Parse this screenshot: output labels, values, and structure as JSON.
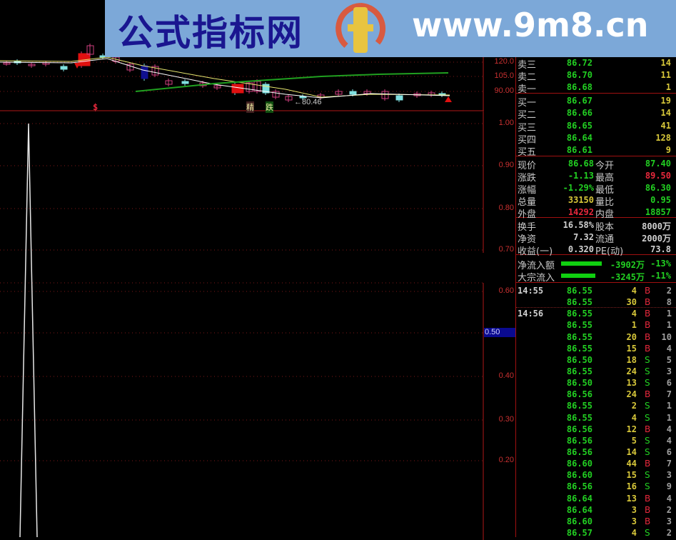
{
  "watermark": {
    "site_name": "公式指标网",
    "url": "www.9m8.cn"
  },
  "top_chart": {
    "y_axis_labels": [
      "120.0",
      "105.0",
      "90.00"
    ],
    "low_marker": "←80.46",
    "tags": [
      "精",
      "跌"
    ],
    "signal": "$"
  },
  "bottom_chart": {
    "y_axis_labels": [
      "1.00",
      "0.90",
      "0.80",
      "0.70",
      "0.60",
      "0.50",
      "0.40",
      "0.30",
      "0.20"
    ],
    "current_value": "0.50"
  },
  "order_book": {
    "asks": [
      {
        "label": "卖三",
        "price": "86.72",
        "vol": "14"
      },
      {
        "label": "卖二",
        "price": "86.70",
        "vol": "11"
      },
      {
        "label": "卖一",
        "price": "86.68",
        "vol": "1"
      }
    ],
    "bids": [
      {
        "label": "买一",
        "price": "86.67",
        "vol": "19"
      },
      {
        "label": "买二",
        "price": "86.66",
        "vol": "14"
      },
      {
        "label": "买三",
        "price": "86.65",
        "vol": "41"
      },
      {
        "label": "买四",
        "price": "86.64",
        "vol": "128"
      },
      {
        "label": "买五",
        "price": "86.61",
        "vol": "9"
      }
    ]
  },
  "quote": [
    {
      "l1": "现价",
      "v1": "86.68",
      "c1": "g",
      "l2": "今开",
      "v2": "87.40",
      "c2": "g"
    },
    {
      "l1": "涨跌",
      "v1": "-1.13",
      "c1": "g",
      "l2": "最高",
      "v2": "89.50",
      "c2": "r"
    },
    {
      "l1": "涨幅",
      "v1": "-1.29%",
      "c1": "g",
      "l2": "最低",
      "v2": "86.30",
      "c2": "g"
    },
    {
      "l1": "总量",
      "v1": "33150",
      "c1": "y",
      "l2": "量比",
      "v2": "0.95",
      "c2": "g"
    },
    {
      "l1": "外盘",
      "v1": "14292",
      "c1": "r",
      "l2": "内盘",
      "v2": "18857",
      "c2": "g"
    }
  ],
  "fundamentals": [
    {
      "l1": "换手",
      "v1": "16.58%",
      "l2": "股本",
      "v2": "8000万"
    },
    {
      "l1": "净资",
      "v1": "7.32",
      "l2": "流通",
      "v2": "2000万"
    },
    {
      "l1": "收益(一)",
      "v1": "0.320",
      "l2": "PE(动)",
      "v2": "73.8"
    }
  ],
  "flows": [
    {
      "label": "净流入额",
      "amount": "-3902万",
      "pct": "-13%",
      "bar_fraction": 0.13
    },
    {
      "label": "大宗流入",
      "amount": "-3245万",
      "pct": "-11%",
      "bar_fraction": 0.11
    }
  ],
  "ticks": [
    {
      "time": "14:55",
      "price": "86.55",
      "vol": "4",
      "side": "B",
      "count": "2"
    },
    {
      "time": "",
      "price": "86.55",
      "vol": "30",
      "side": "B",
      "count": "8"
    },
    {
      "time": "14:56",
      "price": "86.55",
      "vol": "4",
      "side": "B",
      "count": "1"
    },
    {
      "time": "",
      "price": "86.55",
      "vol": "1",
      "side": "B",
      "count": "1"
    },
    {
      "time": "",
      "price": "86.55",
      "vol": "20",
      "side": "B",
      "count": "10"
    },
    {
      "time": "",
      "price": "86.55",
      "vol": "15",
      "side": "B",
      "count": "4"
    },
    {
      "time": "",
      "price": "86.50",
      "vol": "18",
      "side": "S",
      "count": "5"
    },
    {
      "time": "",
      "price": "86.55",
      "vol": "24",
      "side": "S",
      "count": "3"
    },
    {
      "time": "",
      "price": "86.50",
      "vol": "13",
      "side": "S",
      "count": "6"
    },
    {
      "time": "",
      "price": "86.56",
      "vol": "24",
      "side": "B",
      "count": "7"
    },
    {
      "time": "",
      "price": "86.55",
      "vol": "2",
      "side": "S",
      "count": "1"
    },
    {
      "time": "",
      "price": "86.55",
      "vol": "4",
      "side": "S",
      "count": "1"
    },
    {
      "time": "",
      "price": "86.56",
      "vol": "12",
      "side": "B",
      "count": "4"
    },
    {
      "time": "",
      "price": "86.56",
      "vol": "5",
      "side": "S",
      "count": "4"
    },
    {
      "time": "",
      "price": "86.56",
      "vol": "14",
      "side": "S",
      "count": "6"
    },
    {
      "time": "",
      "price": "86.60",
      "vol": "44",
      "side": "B",
      "count": "7"
    },
    {
      "time": "",
      "price": "86.60",
      "vol": "15",
      "side": "S",
      "count": "3"
    },
    {
      "time": "",
      "price": "86.56",
      "vol": "16",
      "side": "S",
      "count": "9"
    },
    {
      "time": "",
      "price": "86.64",
      "vol": "13",
      "side": "B",
      "count": "4"
    },
    {
      "time": "",
      "price": "86.64",
      "vol": "3",
      "side": "B",
      "count": "2"
    },
    {
      "time": "",
      "price": "86.60",
      "vol": "3",
      "side": "B",
      "count": "3"
    },
    {
      "time": "",
      "price": "86.57",
      "vol": "4",
      "side": "S",
      "count": "2"
    }
  ],
  "colors": {
    "up": "#e8283c",
    "down": "#22d022",
    "volume": "#d8c83a",
    "axis": "#c83030",
    "banner": "#7ca8d8"
  }
}
